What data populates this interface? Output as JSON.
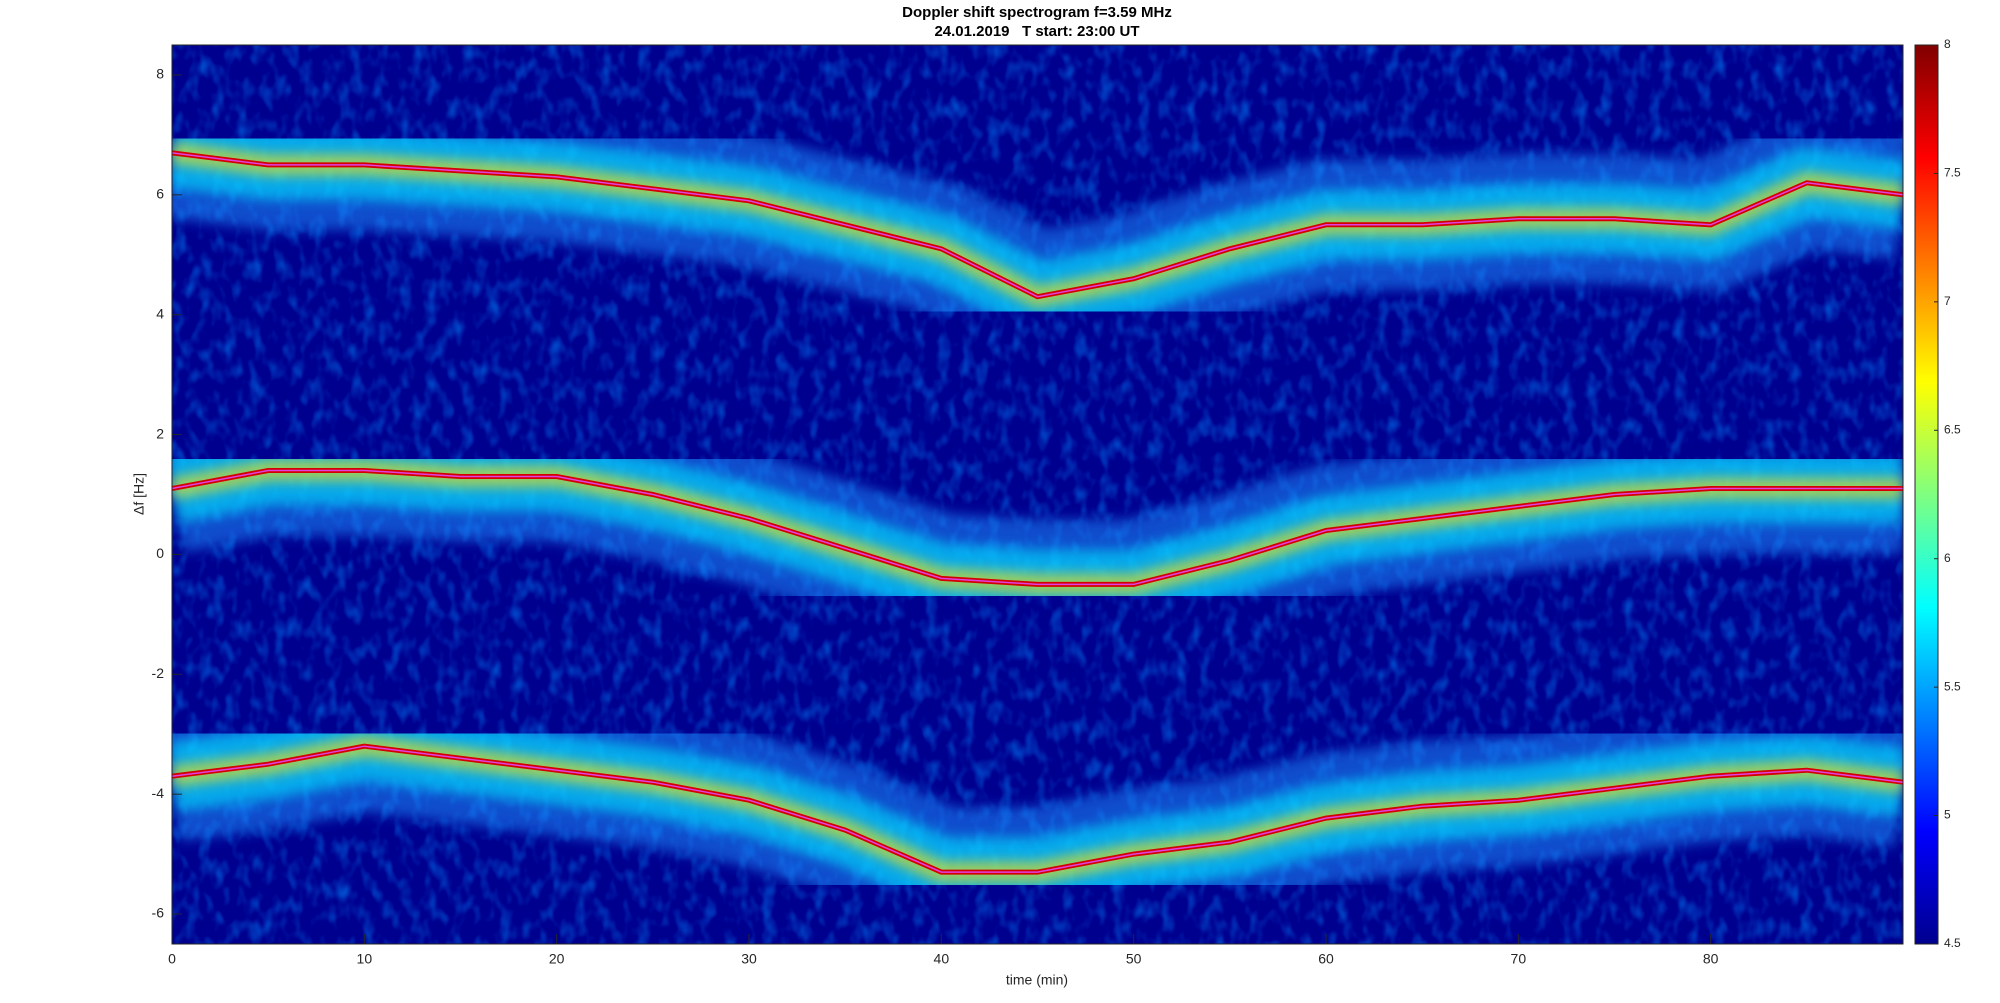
{
  "chart_data": {
    "type": "spectrogram",
    "title": "Doppler shift spectrogram f=3.59 MHz",
    "subtitle": "24.01.2019   T start: 23:00 UT",
    "x_label": "time (min)",
    "y_label": "Δf [Hz]",
    "xlim": [
      0,
      90
    ],
    "xticks": [
      0,
      10,
      20,
      30,
      40,
      50,
      60,
      70,
      80
    ],
    "ylim": [
      -6.5,
      8.5
    ],
    "yticks": [
      -6,
      -4,
      -2,
      0,
      2,
      4,
      6,
      8
    ],
    "clim": [
      4.5,
      8
    ],
    "cticks": [
      4.5,
      5,
      5.5,
      6,
      6.5,
      7,
      7.5,
      8
    ],
    "colormap": "jet",
    "background": "#00008f",
    "x": [
      0,
      5,
      10,
      15,
      20,
      25,
      30,
      35,
      40,
      45,
      50,
      55,
      60,
      65,
      70,
      75,
      80,
      85,
      90
    ],
    "series": [
      {
        "color": "#d40000",
        "values": [
          6.7,
          6.5,
          6.5,
          6.4,
          6.3,
          6.1,
          5.9,
          5.5,
          5.1,
          4.3,
          4.6,
          5.1,
          5.5,
          5.5,
          5.6,
          5.6,
          5.5,
          6.2,
          6.0
        ]
      },
      {
        "color": "#d40000",
        "values": [
          1.1,
          1.4,
          1.4,
          1.3,
          1.3,
          1.0,
          0.6,
          0.1,
          -0.4,
          -0.5,
          -0.5,
          -0.1,
          0.4,
          0.6,
          0.8,
          1.0,
          1.1,
          1.1,
          1.1
        ]
      },
      {
        "color": "#d40000",
        "values": [
          -3.7,
          -3.5,
          -3.2,
          -3.4,
          -3.6,
          -3.8,
          -4.1,
          -4.6,
          -5.3,
          -5.3,
          -5.0,
          -4.8,
          -4.4,
          -4.2,
          -4.1,
          -3.9,
          -3.7,
          -3.6,
          -3.8
        ]
      }
    ]
  }
}
